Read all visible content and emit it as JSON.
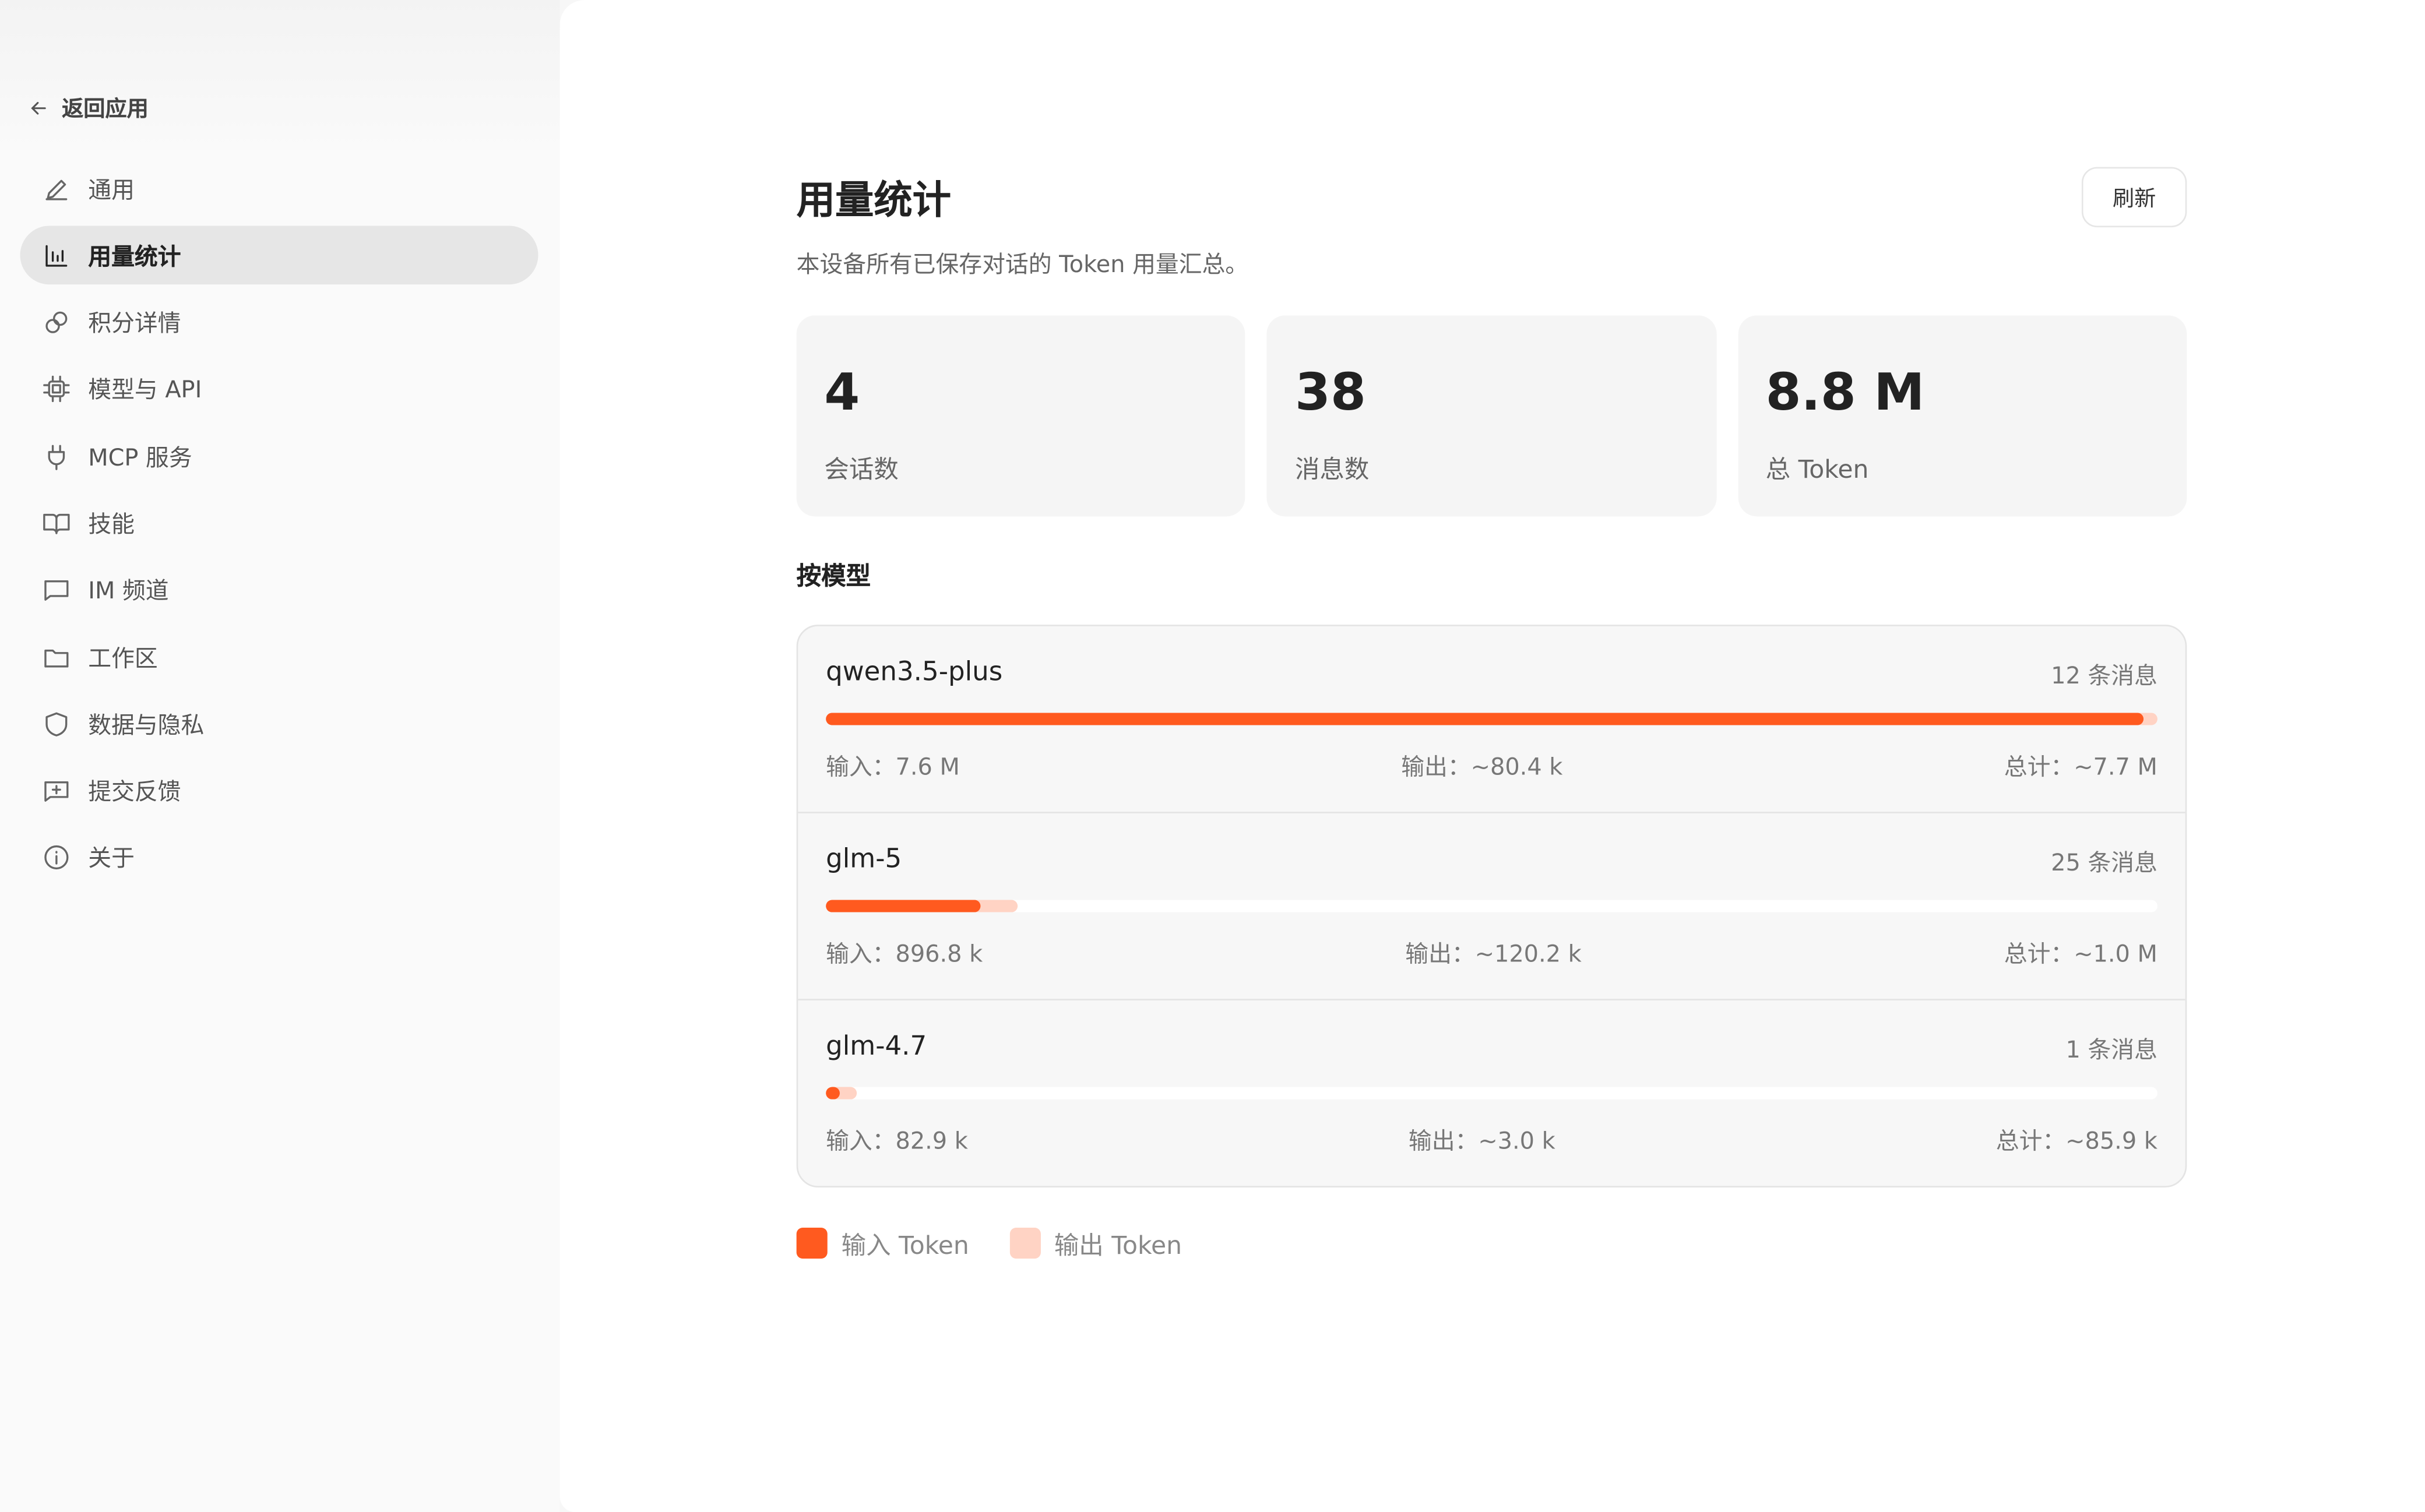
{
  "sidebar": {
    "back_label": "返回应用",
    "items": [
      {
        "label": "通用",
        "icon": "pencil-icon"
      },
      {
        "label": "用量统计",
        "icon": "bar-chart-icon",
        "active": true
      },
      {
        "label": "积分详情",
        "icon": "coins-icon"
      },
      {
        "label": "模型与 API",
        "icon": "chip-icon"
      },
      {
        "label": "MCP 服务",
        "icon": "plug-icon"
      },
      {
        "label": "技能",
        "icon": "book-icon"
      },
      {
        "label": "IM 频道",
        "icon": "message-icon"
      },
      {
        "label": "工作区",
        "icon": "folder-icon"
      },
      {
        "label": "数据与隐私",
        "icon": "shield-icon"
      },
      {
        "label": "提交反馈",
        "icon": "message-plus-icon"
      },
      {
        "label": "关于",
        "icon": "info-icon"
      }
    ]
  },
  "page": {
    "title": "用量统计",
    "subtitle": "本设备所有已保存对话的 Token 用量汇总。",
    "refresh_label": "刷新",
    "cards": [
      {
        "value": "4",
        "label": "会话数"
      },
      {
        "value": "38",
        "label": "消息数"
      },
      {
        "value": "8.8 M",
        "label": "总 Token"
      }
    ],
    "section_title": "按模型",
    "models": [
      {
        "name": "qwen3.5-plus",
        "messages": "12 条消息",
        "input": "输入：7.6 M",
        "output": "输出：~80.4 k",
        "total": "总计：~7.7 M",
        "input_share": 0.99,
        "output_share": 0.01
      },
      {
        "name": "glm-5",
        "messages": "25 条消息",
        "input": "输入：896.8 k",
        "output": "输出：~120.2 k",
        "total": "总计：~1.0 M",
        "input_share": 0.116,
        "output_share": 0.016
      },
      {
        "name": "glm-4.7",
        "messages": "1 条消息",
        "input": "输入：82.9 k",
        "output": "输出：~3.0 k",
        "total": "总计：~85.9 k",
        "input_share": 0.011,
        "output_share": 0.0004
      }
    ],
    "legend": [
      {
        "label": "输入 Token",
        "color": "#ff5a1f"
      },
      {
        "label": "输出 Token",
        "color": "#ffd3c4"
      }
    ]
  }
}
